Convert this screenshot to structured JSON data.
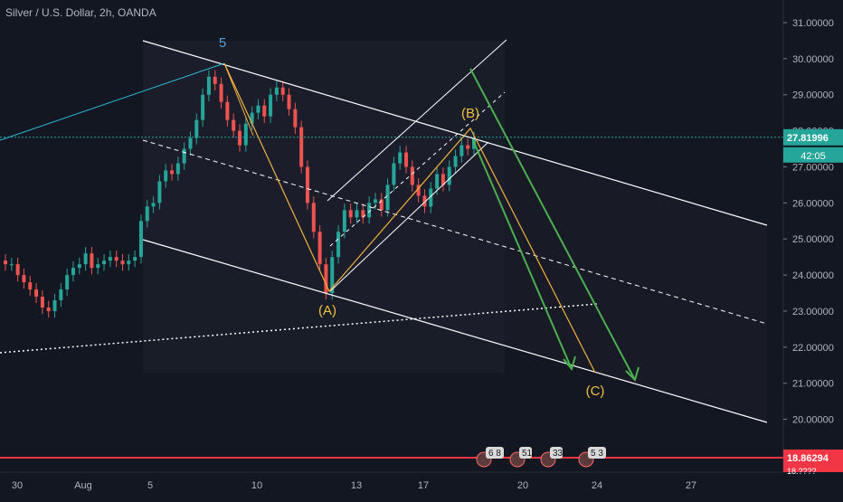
{
  "header": {
    "title": "Silver / U.S. Dollar, 2h, OANDA"
  },
  "colors": {
    "background": "#131722",
    "up_candle": "#26a69a",
    "down_candle": "#ef5350",
    "wave_label": "#f0c040",
    "wave5_label": "#5b9bd5",
    "green_arrow": "#4caf50",
    "orange_line": "#f0b040",
    "last_price": "#26a69a",
    "support_line": "#f23645"
  },
  "chart_data": {
    "type": "candlestick",
    "title": "Silver / U.S. Dollar, 2h, OANDA",
    "ylim": [
      19.62,
      31.62
    ],
    "y_ticks": [
      "31.00000",
      "30.00000",
      "29.00000",
      "28.00000",
      "27.00000",
      "26.00000",
      "25.00000",
      "24.00000",
      "23.00000",
      "22.00000",
      "21.00000",
      "20.00000"
    ],
    "x_ticks": [
      "30",
      "Aug",
      "5",
      "10",
      "13",
      "17",
      "20",
      "24",
      "27"
    ],
    "price_labels": {
      "last_price": "27.81996",
      "countdown": "42:05",
      "support": "18.86294",
      "support_extra": "18.????"
    },
    "wave_labels": [
      {
        "text": "5",
        "date": "Aug 7",
        "price": 30.1
      },
      {
        "text": "(A)",
        "date": "Aug 12",
        "price": 23.0
      },
      {
        "text": "(B)",
        "date": "Aug 18",
        "price": 28.2
      },
      {
        "text": "(C)",
        "date": "Aug 22",
        "price": 20.6
      }
    ],
    "candles_close": [
      24.3,
      24.3,
      24.0,
      23.8,
      23.6,
      23.4,
      23.1,
      23.0,
      23.3,
      23.6,
      24.0,
      24.2,
      24.3,
      24.6,
      24.2,
      24.3,
      24.4,
      24.5,
      24.4,
      24.3,
      24.4,
      24.5,
      25.5,
      25.9,
      26.0,
      26.6,
      26.9,
      26.8,
      27.1,
      27.5,
      27.8,
      28.3,
      29.0,
      29.5,
      29.3,
      28.8,
      28.3,
      28.0,
      27.6,
      28.2,
      28.5,
      28.7,
      28.4,
      29.0,
      29.2,
      29.0,
      28.6,
      28.1,
      27.0,
      26.0,
      25.2,
      24.3,
      23.5,
      24.5,
      25.2,
      25.8,
      25.6,
      25.8,
      25.6,
      26.0,
      26.1,
      25.8,
      26.5,
      27.1,
      27.4,
      27.0,
      26.5,
      26.2,
      25.9,
      26.4,
      26.8,
      26.5,
      27.0,
      27.3,
      27.6,
      27.5,
      27.8
    ],
    "overlays": {
      "down_channel": "descending parallel channel with dashed midline",
      "up_channel": "small ascending channel from (A) to (B)",
      "zigzag": "orange wave path 5 → (A) → (B) → (C)",
      "projections": "two green arrows pointing down toward (C)",
      "horizontal_lines": [
        "dotted green line at last price 27.82",
        "red support line at 18.86"
      ],
      "diagonal_support": "white dotted ascending line"
    },
    "grid": false,
    "legend": "none"
  }
}
